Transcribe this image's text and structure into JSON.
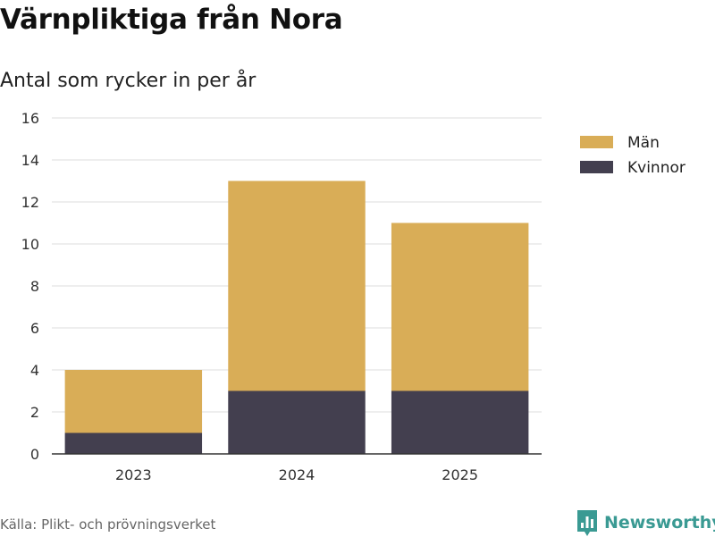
{
  "title": "Värnpliktiga från Nora",
  "subtitle": "Antal som rycker in per år",
  "source": "Källa: Plikt- och prövningsverket",
  "logo": {
    "text": "Newsworthy",
    "color": "#3a9a93",
    "icon": "bar-chart-speech-bubble-icon"
  },
  "chart_data": {
    "type": "bar",
    "stacked": true,
    "categories": [
      "2023",
      "2024",
      "2025"
    ],
    "series": [
      {
        "name": "Kvinnor",
        "values": [
          1,
          3,
          3
        ],
        "color": "#433f4f"
      },
      {
        "name": "Män",
        "values": [
          3,
          10,
          8
        ],
        "color": "#d9ad57"
      }
    ],
    "legend_order": [
      "Män",
      "Kvinnor"
    ],
    "ylim": [
      0,
      16
    ],
    "yticks": [
      0,
      2,
      4,
      6,
      8,
      10,
      12,
      14,
      16
    ],
    "grid": true,
    "legend_position": "right",
    "xlabel": "",
    "ylabel": ""
  }
}
